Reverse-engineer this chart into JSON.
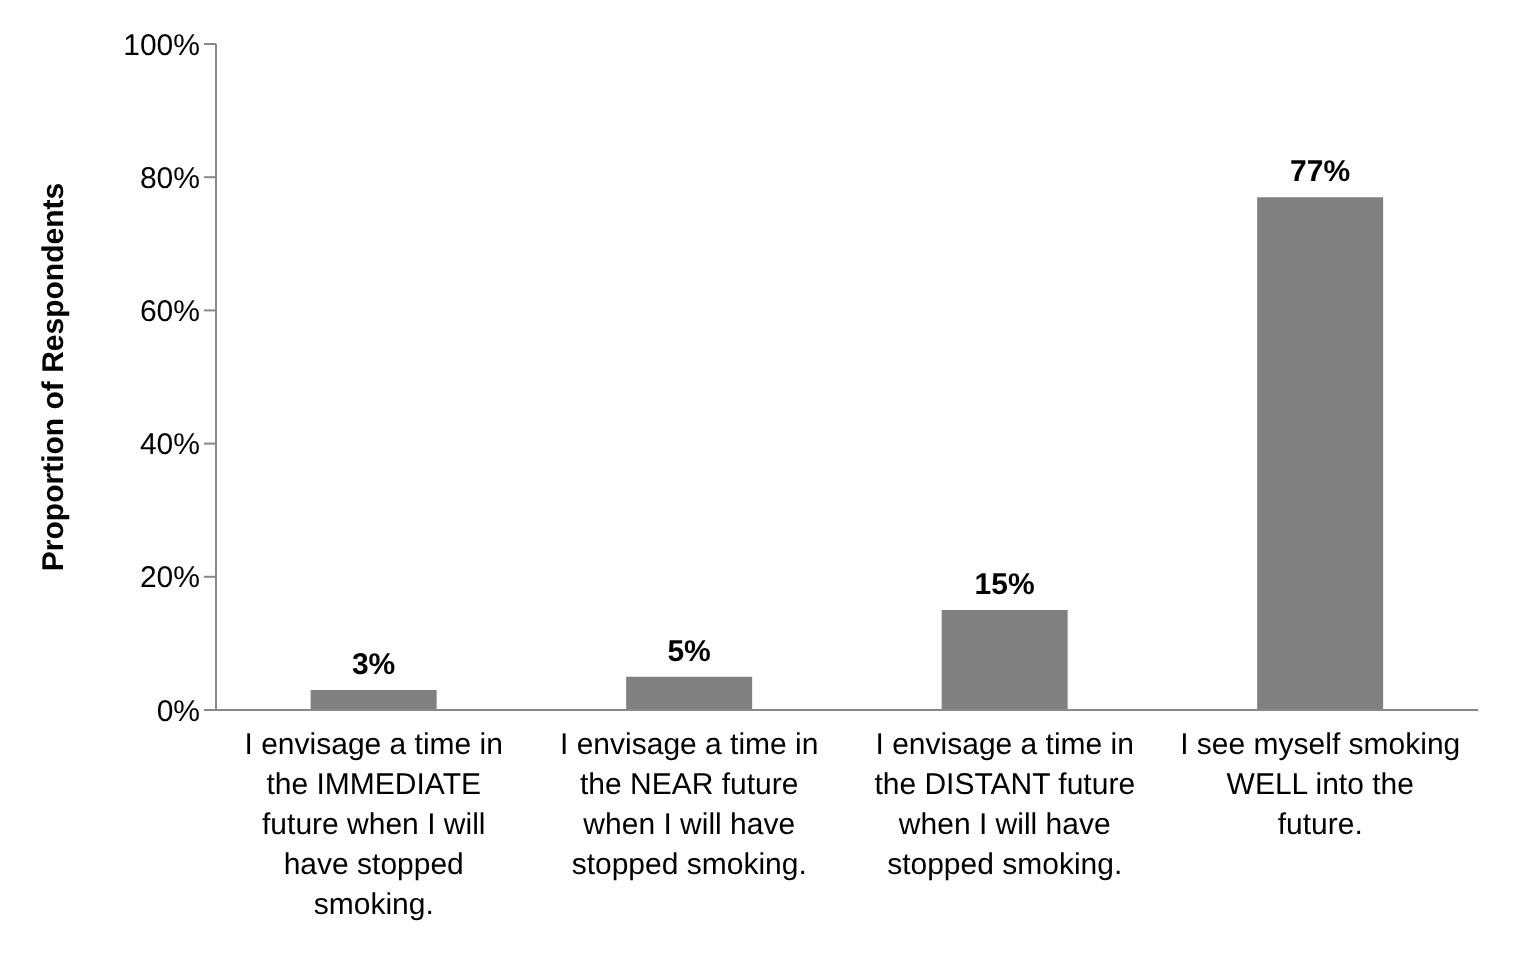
{
  "chart_data": {
    "type": "bar",
    "ylabel": "Proportion of Respondents",
    "categories": [
      "I envisage a time in the IMMEDIATE future when I will have stopped smoking.",
      "I envisage a time in the NEAR future when I will have stopped smoking.",
      "I envisage a time in the DISTANT future when I will have stopped smoking.",
      "I see myself smoking WELL into the future."
    ],
    "values": [
      3,
      5,
      15,
      77
    ],
    "color": "#808080",
    "value_labels": [
      "3%",
      "5%",
      "15%",
      "77%"
    ],
    "ylim": [
      0,
      100
    ],
    "yticks": [
      {
        "value": 0,
        "label": "0%"
      },
      {
        "value": 20,
        "label": "20%"
      },
      {
        "value": 40,
        "label": "40%"
      },
      {
        "value": 60,
        "label": "60%"
      },
      {
        "value": 80,
        "label": "80%"
      },
      {
        "value": 100,
        "label": "100%"
      }
    ],
    "grid": false,
    "legend": false
  }
}
